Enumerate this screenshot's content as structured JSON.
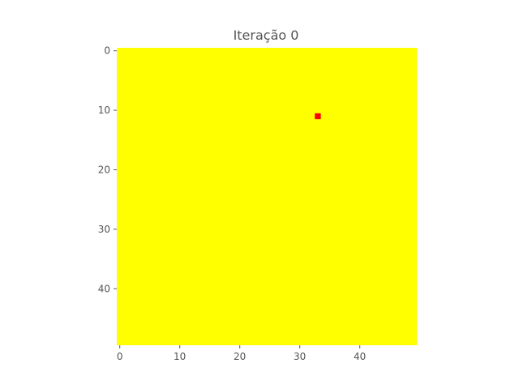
{
  "chart_data": {
    "type": "heatmap",
    "title": "Iteração 0",
    "xlabel": "",
    "ylabel": "",
    "grid_size": [
      50,
      50
    ],
    "xlim": [
      -0.5,
      49.5
    ],
    "ylim": [
      49.5,
      -0.5
    ],
    "x_ticks": [
      0,
      10,
      20,
      30,
      40
    ],
    "y_ticks": [
      0,
      10,
      20,
      30,
      40
    ],
    "x_tick_labels": [
      "0",
      "10",
      "20",
      "30",
      "40"
    ],
    "y_tick_labels": [
      "0",
      "10",
      "20",
      "30",
      "40"
    ],
    "background_value": 0,
    "background_color": "#ffff00",
    "highlight_cells": [
      {
        "row": 11,
        "col": 33,
        "value": 1,
        "color": "#ff0000"
      }
    ],
    "grid": false,
    "legend": "none"
  }
}
